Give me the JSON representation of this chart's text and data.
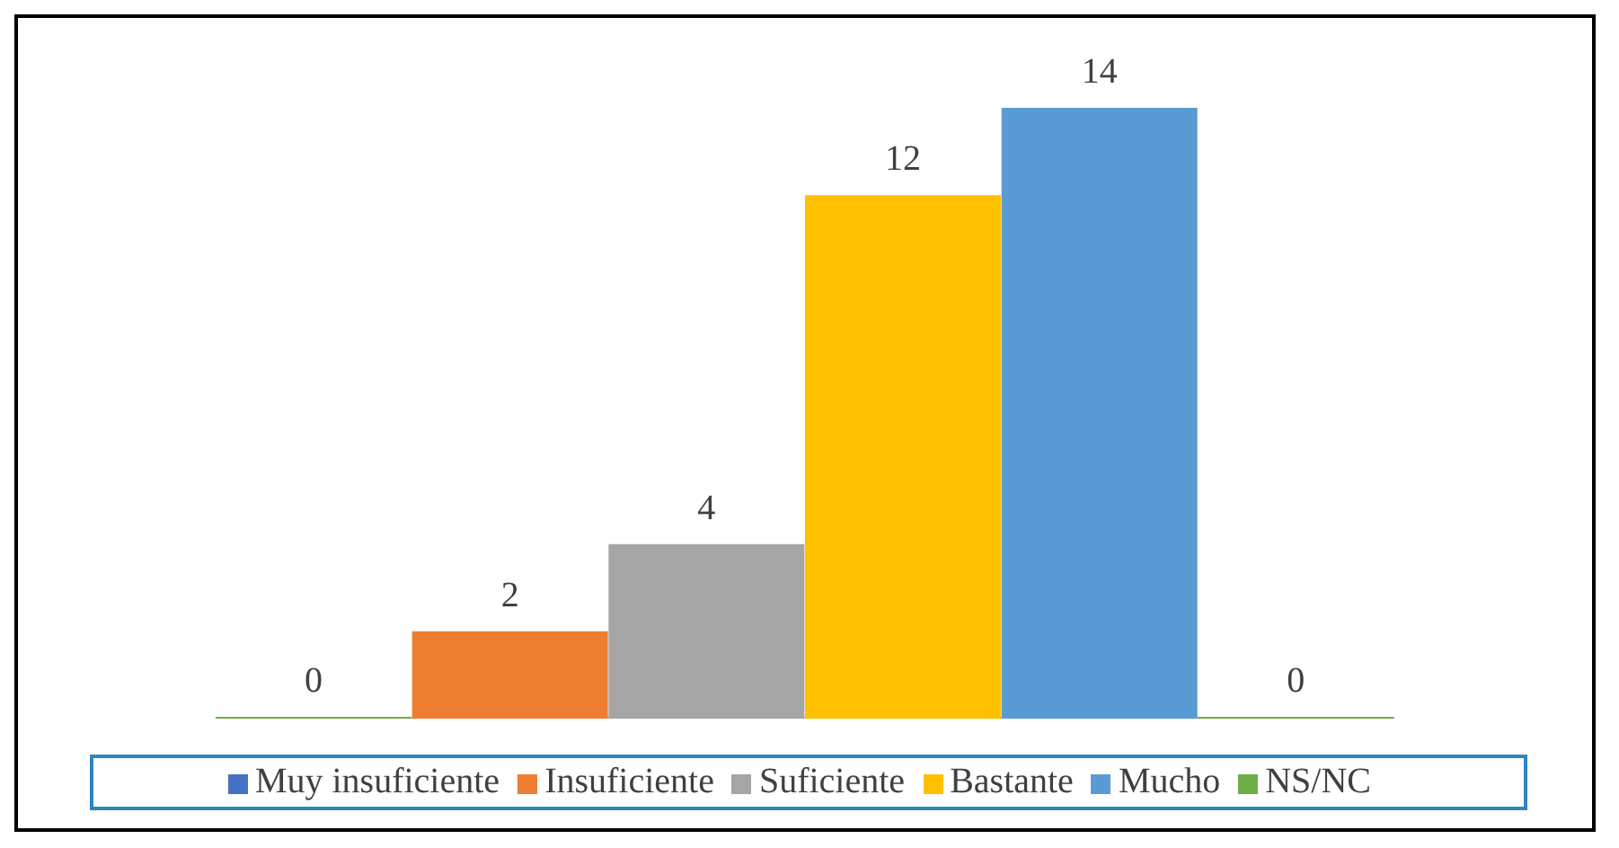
{
  "chart_data": {
    "type": "bar",
    "stacked": true,
    "categories": [
      null,
      null,
      null,
      null,
      null,
      null
    ],
    "series": [
      {
        "name": "Muy insuficiente",
        "color": "#4472c4",
        "values": [
          0,
          null,
          null,
          null,
          null,
          null
        ]
      },
      {
        "name": "Insuficiente",
        "color": "#ed7d31",
        "values": [
          null,
          2,
          null,
          null,
          null,
          null
        ]
      },
      {
        "name": "Suficiente",
        "color": "#a5a5a5",
        "values": [
          null,
          null,
          4,
          null,
          null,
          null
        ]
      },
      {
        "name": "Bastante",
        "color": "#ffc000",
        "values": [
          null,
          null,
          null,
          12,
          null,
          null
        ]
      },
      {
        "name": "Mucho",
        "color": "#5b9bd5",
        "values": [
          null,
          null,
          null,
          null,
          14,
          null
        ]
      },
      {
        "name": "NS/NC",
        "color": "#70ad47",
        "values": [
          null,
          null,
          null,
          null,
          null,
          0
        ]
      }
    ],
    "data_labels": true,
    "legend": "bottom",
    "grid": false
  }
}
